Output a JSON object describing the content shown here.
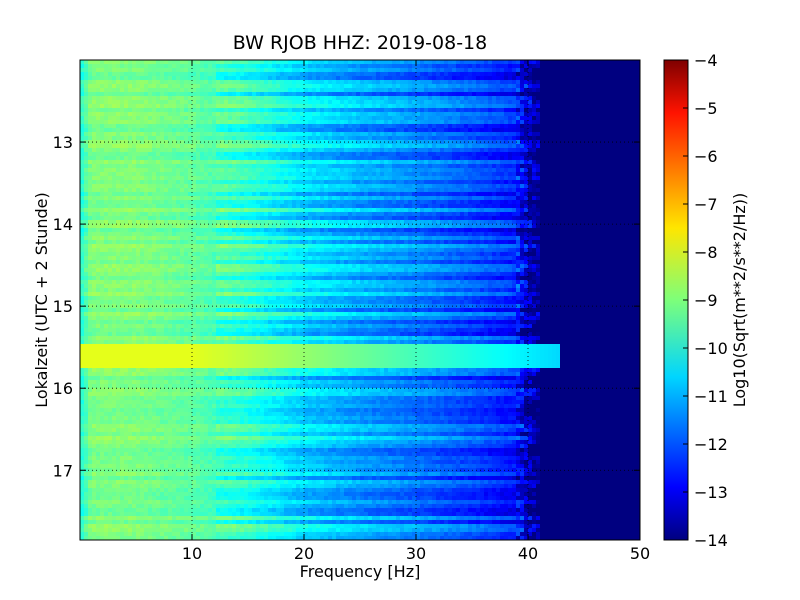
{
  "chart_data": {
    "type": "heatmap",
    "title": "BW RJOB HHZ: 2019-08-18",
    "xlabel": "Frequency [Hz]",
    "ylabel": "Lokalzeit (UTC + 2 Stunde)",
    "colorbar_label": "Log10(Sqrt(m**2/s**2/Hz))",
    "xlim": [
      0,
      50
    ],
    "ylim_inverted": [
      12.0,
      17.85
    ],
    "x_ticks": [
      10,
      20,
      30,
      40,
      50
    ],
    "y_ticks": [
      13,
      14,
      15,
      16,
      17
    ],
    "colorbar_range": [
      -14,
      -4
    ],
    "colorbar_ticks": [
      -4,
      -5,
      -6,
      -7,
      -8,
      -9,
      -10,
      -11,
      -12,
      -13,
      -14
    ],
    "colormap": "jet",
    "grid": true,
    "frequency_profile": {
      "frequency_hz": [
        0,
        1,
        5,
        10,
        15,
        20,
        25,
        30,
        35,
        39,
        40,
        41,
        42,
        50
      ],
      "log10_amplitude": [
        -10,
        -9,
        -9,
        -9.3,
        -9.8,
        -10.6,
        -11.1,
        -11.5,
        -12.0,
        -12.5,
        -13.4,
        -14,
        -14,
        -14
      ]
    },
    "features": [
      {
        "note": "broadband excitation",
        "time_hours": [
          15.45,
          15.75
        ],
        "freq_hz": [
          0,
          43
        ],
        "log10_amplitude": -8
      }
    ]
  }
}
